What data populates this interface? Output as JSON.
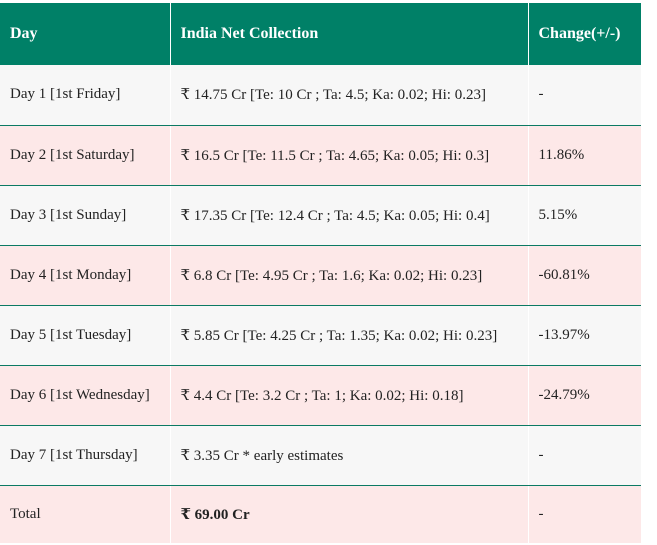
{
  "table": {
    "headers": {
      "day": "Day",
      "net": "India Net Collection",
      "change": "Change(+/-)"
    },
    "rows": [
      {
        "day": "Day 1 [1st Friday]",
        "net": "₹ 14.75 Cr [Te: 10 Cr ; Ta: 4.5; Ka: 0.02; Hi: 0.23]",
        "change": "-"
      },
      {
        "day": "Day 2 [1st Saturday]",
        "net": "₹ 16.5 Cr [Te: 11.5 Cr ; Ta: 4.65; Ka: 0.05; Hi: 0.3]",
        "change": "11.86%"
      },
      {
        "day": "Day 3 [1st Sunday]",
        "net": "₹ 17.35 Cr [Te: 12.4 Cr ; Ta: 4.5; Ka: 0.05; Hi: 0.4]",
        "change": "5.15%"
      },
      {
        "day": "Day 4 [1st Monday]",
        "net": "₹ 6.8 Cr [Te: 4.95 Cr ; Ta: 1.6; Ka: 0.02; Hi: 0.23]",
        "change": "-60.81%"
      },
      {
        "day": "Day 5 [1st Tuesday]",
        "net": "₹ 5.85 Cr [Te: 4.25 Cr ; Ta: 1.35; Ka: 0.02; Hi: 0.23]",
        "change": "-13.97%"
      },
      {
        "day": "Day 6 [1st Wednesday]",
        "net": "₹ 4.4 Cr [Te: 3.2 Cr ; Ta: 1; Ka: 0.02; Hi: 0.18]",
        "change": "-24.79%"
      },
      {
        "day": "Day 7 [1st Thursday]",
        "net": "₹ 3.35 Cr * early estimates",
        "change": "-"
      }
    ],
    "total": {
      "day": "Total",
      "net": "₹ 69.00 Cr",
      "change": "-"
    }
  },
  "colors": {
    "header_bg": "#008067",
    "row_odd_bg": "#f7f7f7",
    "row_even_bg": "#fde8e8",
    "row_divider": "#0b7a63"
  }
}
